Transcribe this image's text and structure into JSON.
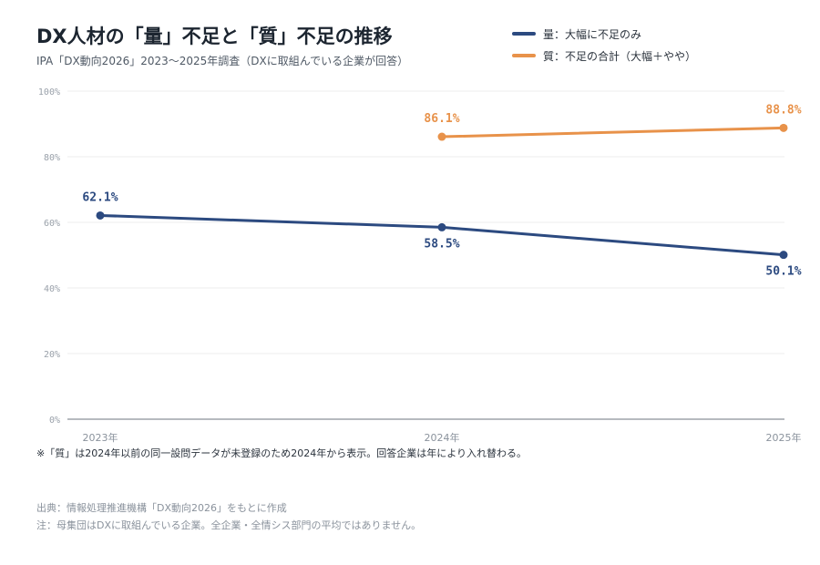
{
  "title": "DX人材の「量」不足と「質」不足の推移",
  "subtitle": "IPA「DX動向2026」2023〜2025年調査（DXに取組んでいる企業が回答）",
  "note": "※「質」は2024年以前の同一設問データが未登録のため2024年から表示。回答企業は年により入れ替わる。",
  "source_lines": [
    "出典：情報処理推進機構「DX動向2026」をもとに作成",
    "注：母集団はDXに取組んでいる企業。全企業・全情シス部門の平均ではありません。"
  ],
  "chart_data": {
    "type": "line",
    "title": "DX人材の「量」不足と「質」不足の推移",
    "subtitle": "IPA「DX動向2026」2023〜2025年調査（DXに取組んでいる企業が回答）",
    "x": [
      "2023年",
      "2024年",
      "2025年"
    ],
    "ylim": [
      0,
      100
    ],
    "yticks": [
      0,
      20,
      40,
      60,
      80,
      100
    ],
    "ytick_labels": [
      "0%",
      "20%",
      "40%",
      "60%",
      "80%",
      "100%"
    ],
    "grid": true,
    "legend_position": "top-right",
    "series": [
      {
        "name": "量：大幅に不足のみ",
        "color": "#2c4a80",
        "values": [
          62.1,
          58.5,
          50.1
        ],
        "labels": [
          "62.1%",
          "58.5%",
          "50.1%"
        ],
        "label_positions": [
          "above",
          "below",
          "below"
        ]
      },
      {
        "name": "質：不足の合計（大幅＋やや）",
        "color": "#e8924a",
        "values": [
          null,
          86.1,
          88.8
        ],
        "labels": [
          null,
          "86.1%",
          "88.8%"
        ],
        "label_positions": [
          null,
          "above",
          "above"
        ]
      }
    ]
  }
}
